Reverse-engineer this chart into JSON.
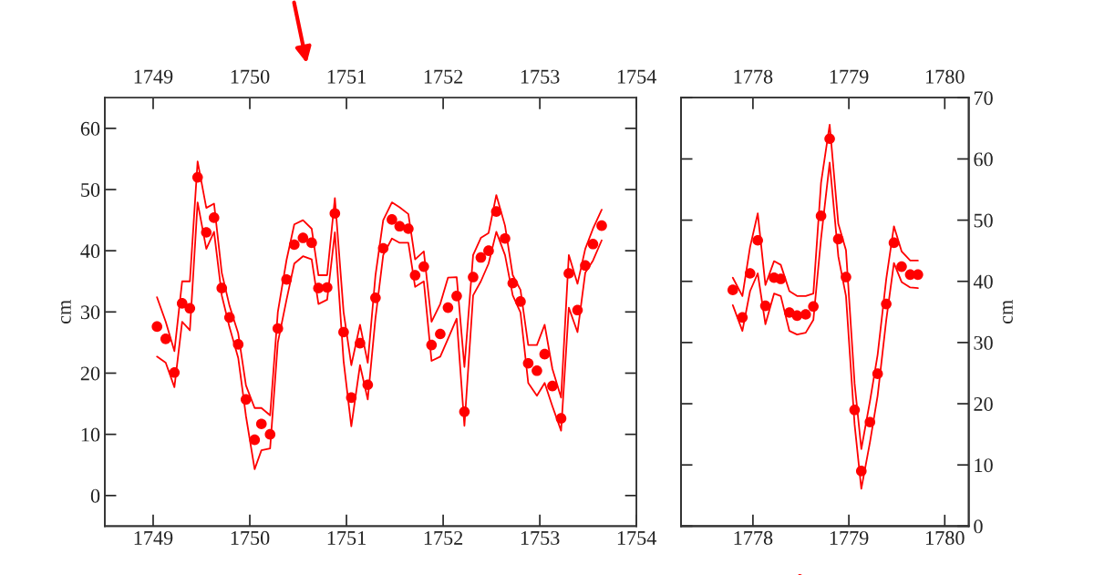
{
  "chart_data": [
    {
      "type": "scatter",
      "ylabel": "cm",
      "xlim": [
        1748.5,
        1754
      ],
      "xticks": [
        1749,
        1750,
        1751,
        1752,
        1753,
        1754
      ],
      "x2lim": [
        1748.5,
        1754
      ],
      "x2ticks": [
        1749,
        1750,
        1751,
        1752,
        1753,
        1754
      ],
      "ylim": [
        -5,
        65
      ],
      "yticks": [
        0,
        10,
        20,
        30,
        40,
        50,
        60
      ],
      "series": [
        {
          "marker": "circle",
          "color": "#ff0000",
          "x": [
            1749.04,
            1749.13,
            1749.22,
            1749.3,
            1749.38,
            1749.46,
            1749.55,
            1749.63,
            1749.71,
            1749.79,
            1749.88,
            1749.96,
            1750.05,
            1750.12,
            1750.21,
            1750.29,
            1750.38,
            1750.46,
            1750.55,
            1750.64,
            1750.71,
            1750.8,
            1750.88,
            1750.97,
            1751.05,
            1751.14,
            1751.22,
            1751.3,
            1751.38,
            1751.47,
            1751.55,
            1751.64,
            1751.71,
            1751.8,
            1751.88,
            1751.97,
            1752.05,
            1752.14,
            1752.22,
            1752.31,
            1752.39,
            1752.47,
            1752.55,
            1752.64,
            1752.72,
            1752.8,
            1752.88,
            1752.97,
            1753.05,
            1753.13,
            1753.22,
            1753.3,
            1753.39,
            1753.47,
            1753.55,
            1753.64
          ],
          "values": [
            27.6,
            25.6,
            20.1,
            31.4,
            30.6,
            52.0,
            43.0,
            45.4,
            33.9,
            29.1,
            24.7,
            15.7,
            9.1,
            11.7,
            10.0,
            27.3,
            35.3,
            41.0,
            42.1,
            41.3,
            33.9,
            34.0,
            46.1,
            26.7,
            16.0,
            24.9,
            18.1,
            32.3,
            40.4,
            45.1,
            44.0,
            43.6,
            36.0,
            37.4,
            24.6,
            26.4,
            30.7,
            32.6,
            13.7,
            35.7,
            38.9,
            40.0,
            46.4,
            42.0,
            34.7,
            31.7,
            21.6,
            20.4,
            23.1,
            17.9,
            12.6,
            36.3,
            30.3,
            37.6,
            41.1,
            44.1
          ]
        },
        {
          "type": "line",
          "color": "#ff0000",
          "x": [
            1749.04,
            1749.13,
            1749.22,
            1749.3,
            1749.38,
            1749.46,
            1749.55,
            1749.63,
            1749.71,
            1749.79,
            1749.88,
            1749.96,
            1750.05,
            1750.12,
            1750.21,
            1750.29,
            1750.38,
            1750.46,
            1750.55,
            1750.64,
            1750.71,
            1750.8,
            1750.88,
            1750.97,
            1751.05,
            1751.14,
            1751.22,
            1751.3,
            1751.38,
            1751.47,
            1751.55,
            1751.64,
            1751.71,
            1751.8,
            1751.88,
            1751.97,
            1752.05,
            1752.14,
            1752.22,
            1752.31,
            1752.39,
            1752.47,
            1752.55,
            1752.64,
            1752.72,
            1752.8,
            1752.88,
            1752.97,
            1753.05,
            1753.13,
            1753.22,
            1753.3,
            1753.39,
            1753.47,
            1753.55,
            1753.64
          ],
          "values": [
            32.4,
            28.4,
            23.6,
            35,
            35,
            54.6,
            47,
            47.7,
            36.4,
            31,
            26.5,
            18,
            14.3,
            14.3,
            13.1,
            30,
            38.5,
            44.3,
            45,
            43.6,
            36,
            36,
            48.6,
            30,
            21.3,
            27.9,
            21.7,
            36,
            45,
            47.9,
            47.1,
            46,
            38.6,
            39.9,
            28.4,
            31.3,
            35.6,
            35.7,
            21,
            39.3,
            42.1,
            42.9,
            49.1,
            44.1,
            36,
            33.6,
            24.6,
            24.6,
            27.9,
            20.7,
            16,
            39.3,
            34.6,
            40.3,
            43.6,
            46.7
          ]
        },
        {
          "type": "line",
          "color": "#ff0000",
          "x": [
            1749.04,
            1749.13,
            1749.22,
            1749.3,
            1749.38,
            1749.46,
            1749.55,
            1749.63,
            1749.71,
            1749.79,
            1749.88,
            1749.96,
            1750.05,
            1750.12,
            1750.21,
            1750.29,
            1750.38,
            1750.46,
            1750.55,
            1750.64,
            1750.71,
            1750.8,
            1750.88,
            1750.97,
            1751.05,
            1751.14,
            1751.22,
            1751.3,
            1751.38,
            1751.47,
            1751.55,
            1751.64,
            1751.71,
            1751.8,
            1751.88,
            1751.97,
            1752.05,
            1752.14,
            1752.22,
            1752.31,
            1752.39,
            1752.47,
            1752.55,
            1752.64,
            1752.72,
            1752.8,
            1752.88,
            1752.97,
            1753.05,
            1753.13,
            1753.22,
            1753.3,
            1753.39,
            1753.47,
            1753.55,
            1753.64
          ],
          "values": [
            22.7,
            21.7,
            17.7,
            28.4,
            27,
            47.9,
            40.3,
            43.1,
            32.7,
            27.5,
            22.5,
            13,
            4.3,
            7.4,
            7.7,
            25,
            32,
            37.9,
            39.1,
            38.6,
            31.3,
            32,
            43,
            22,
            11.3,
            21.3,
            15.7,
            29,
            39.3,
            42,
            41.3,
            41.3,
            34.1,
            35,
            22,
            22.7,
            25.6,
            28.9,
            11.4,
            32.7,
            35,
            37.9,
            43.1,
            39.3,
            32.7,
            29.9,
            18.4,
            16.3,
            18.4,
            14.6,
            10.6,
            30.7,
            26.7,
            36.4,
            38.4,
            41.7
          ]
        }
      ]
    },
    {
      "type": "scatter",
      "y2label": "cm",
      "xlim": [
        1777.25,
        1780.25
      ],
      "xticks": [
        1778,
        1779,
        1780
      ],
      "x2lim": [
        1777.25,
        1780.25
      ],
      "x2ticks": [
        1778,
        1779,
        1780
      ],
      "y2lim": [
        0,
        70
      ],
      "y2ticks": [
        0,
        10,
        20,
        30,
        40,
        50,
        60,
        70
      ],
      "series": [
        {
          "marker": "circle",
          "axis": "y2",
          "color": "#ff0000",
          "x": [
            1777.79,
            1777.89,
            1777.97,
            1778.05,
            1778.13,
            1778.22,
            1778.29,
            1778.38,
            1778.46,
            1778.55,
            1778.63,
            1778.71,
            1778.8,
            1778.89,
            1778.97,
            1779.06,
            1779.13,
            1779.22,
            1779.3,
            1779.39,
            1779.47,
            1779.55,
            1779.64,
            1779.72
          ],
          "values": [
            38.6,
            34.1,
            41.3,
            46.7,
            36.0,
            40.6,
            40.4,
            34.9,
            34.4,
            34.6,
            35.9,
            50.7,
            63.3,
            46.9,
            40.7,
            19.0,
            9.0,
            17.0,
            24.9,
            36.3,
            46.3,
            42.4,
            41.1,
            41.1
          ]
        },
        {
          "type": "line",
          "axis": "y2",
          "color": "#ff0000",
          "x": [
            1777.79,
            1777.89,
            1777.97,
            1778.05,
            1778.13,
            1778.22,
            1778.29,
            1778.38,
            1778.46,
            1778.55,
            1778.63,
            1778.71,
            1778.8,
            1778.89,
            1778.97,
            1779.06,
            1779.13,
            1779.22,
            1779.3,
            1779.39,
            1779.47,
            1779.55,
            1779.64,
            1779.72
          ],
          "values": [
            40.6,
            37.6,
            45.6,
            51.1,
            39.4,
            43.3,
            42.7,
            38.4,
            37.6,
            37.6,
            38,
            56.1,
            65.6,
            49.4,
            45.1,
            23.3,
            12.6,
            20.4,
            28,
            40.4,
            49,
            44.9,
            43.4,
            43.4
          ]
        },
        {
          "type": "line",
          "axis": "y2",
          "color": "#ff0000",
          "x": [
            1777.79,
            1777.89,
            1777.97,
            1778.05,
            1778.13,
            1778.22,
            1778.29,
            1778.38,
            1778.46,
            1778.55,
            1778.63,
            1778.71,
            1778.8,
            1778.89,
            1778.97,
            1779.06,
            1779.13,
            1779.22,
            1779.3,
            1779.39,
            1779.47,
            1779.55,
            1779.64,
            1779.72
          ],
          "values": [
            36.1,
            31.9,
            38.4,
            41.3,
            33,
            38,
            37.6,
            31.9,
            31.3,
            31.6,
            33.7,
            47,
            59.4,
            44.1,
            37.6,
            16.6,
            6.1,
            13.7,
            21.3,
            33.7,
            43,
            39.9,
            39,
            38.9
          ]
        }
      ]
    }
  ]
}
